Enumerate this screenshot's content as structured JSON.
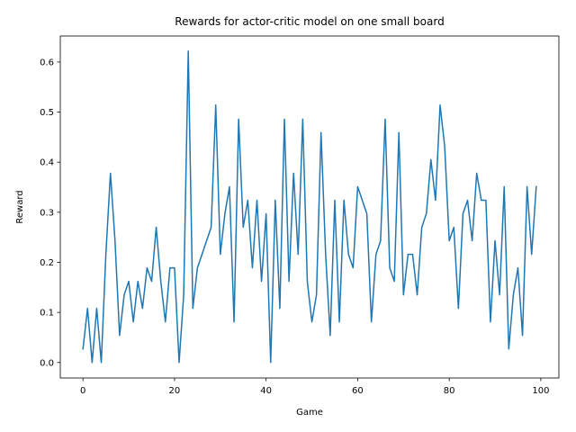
{
  "chart_data": {
    "type": "line",
    "title": "Rewards for actor-critic model on one small board",
    "xlabel": "Game",
    "ylabel": "Reward",
    "xlim": [
      -4.95,
      103.95
    ],
    "ylim": [
      -0.031,
      0.652
    ],
    "xticks": [
      0,
      20,
      40,
      60,
      80,
      100
    ],
    "xtick_labels": [
      "0",
      "20",
      "40",
      "60",
      "80",
      "100"
    ],
    "yticks": [
      0.0,
      0.1,
      0.2,
      0.3,
      0.4,
      0.5,
      0.6
    ],
    "ytick_labels": [
      "0.0",
      "0.1",
      "0.2",
      "0.3",
      "0.4",
      "0.5",
      "0.6"
    ],
    "grid": false,
    "line_color": "#1f77b4",
    "series": [
      {
        "x": [
          0,
          1,
          2,
          3,
          4,
          5,
          6,
          7,
          8,
          9,
          10,
          11,
          12,
          13,
          14,
          15,
          16,
          17,
          18,
          19,
          20,
          21,
          22,
          23,
          24,
          25,
          26,
          27,
          28,
          29,
          30,
          31,
          32,
          33,
          34,
          35,
          36,
          37,
          38,
          39,
          40,
          41,
          42,
          43,
          44,
          45,
          46,
          47,
          48,
          49,
          50,
          51,
          52,
          53,
          54,
          55,
          56,
          57,
          58,
          59,
          60,
          61,
          62,
          63,
          64,
          65,
          66,
          67,
          68,
          69,
          70,
          71,
          72,
          73,
          74,
          75,
          76,
          77,
          78,
          79,
          80,
          81,
          82,
          83,
          84,
          85,
          86,
          87,
          88,
          89,
          90,
          91,
          92,
          93,
          94,
          95,
          96,
          97,
          98,
          99
        ],
        "y": [
          0.027,
          0.108,
          0.0,
          0.108,
          0.0,
          0.216,
          0.378,
          0.243,
          0.054,
          0.135,
          0.162,
          0.081,
          0.162,
          0.108,
          0.189,
          0.162,
          0.27,
          0.162,
          0.081,
          0.189,
          0.189,
          0.0,
          0.135,
          0.622,
          0.108,
          0.189,
          0.216,
          0.243,
          0.27,
          0.514,
          0.216,
          0.297,
          0.351,
          0.081,
          0.486,
          0.27,
          0.324,
          0.189,
          0.324,
          0.162,
          0.297,
          0.0,
          0.324,
          0.108,
          0.486,
          0.162,
          0.378,
          0.216,
          0.486,
          0.162,
          0.081,
          0.135,
          0.459,
          0.216,
          0.054,
          0.324,
          0.081,
          0.324,
          0.216,
          0.189,
          0.351,
          0.324,
          0.297,
          0.081,
          0.216,
          0.243,
          0.486,
          0.189,
          0.162,
          0.459,
          0.135,
          0.216,
          0.216,
          0.135,
          0.27,
          0.297,
          0.405,
          0.324,
          0.514,
          0.432,
          0.243,
          0.27,
          0.108,
          0.297,
          0.324,
          0.243,
          0.378,
          0.324,
          0.324,
          0.081,
          0.243,
          0.135,
          0.351,
          0.027,
          0.135,
          0.189,
          0.054,
          0.351,
          0.216,
          0.351
        ]
      }
    ]
  }
}
